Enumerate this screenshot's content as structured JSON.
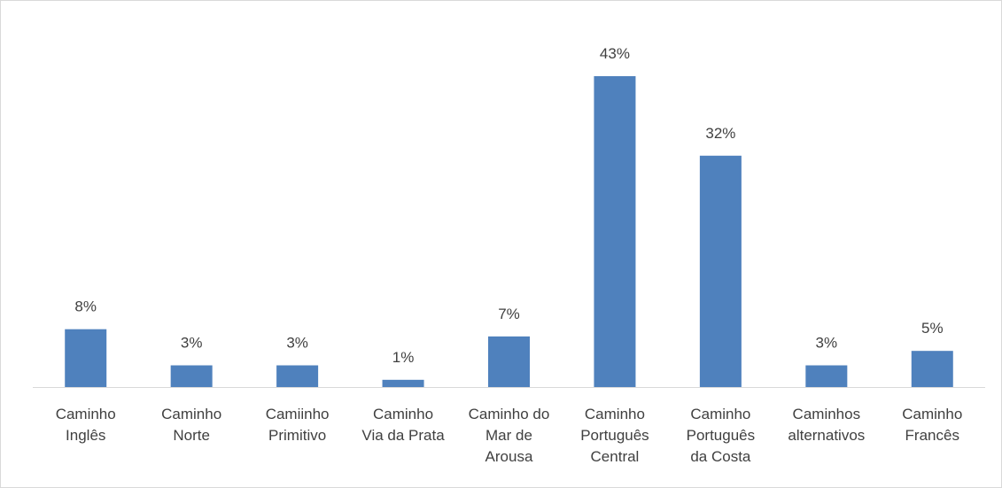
{
  "chart_data": {
    "type": "bar",
    "categories": [
      "Caminho\nInglês",
      "Caminho\nNorte",
      "Camiinho\nPrimitivo",
      "Caminho\nVia da Prata",
      "Caminho do\nMar de\nArousa",
      "Caminho\nPortuguês\nCentral",
      "Caminho\nPortuguês\nda Costa",
      "Caminhos\nalternativos",
      "Caminho\nFrancês"
    ],
    "values": [
      8,
      3,
      3,
      1,
      7,
      43,
      32,
      3,
      5
    ],
    "value_labels": [
      "8%",
      "3%",
      "3%",
      "1%",
      "7%",
      "43%",
      "32%",
      "3%",
      "5%"
    ],
    "color": "#4f81bd"
  }
}
